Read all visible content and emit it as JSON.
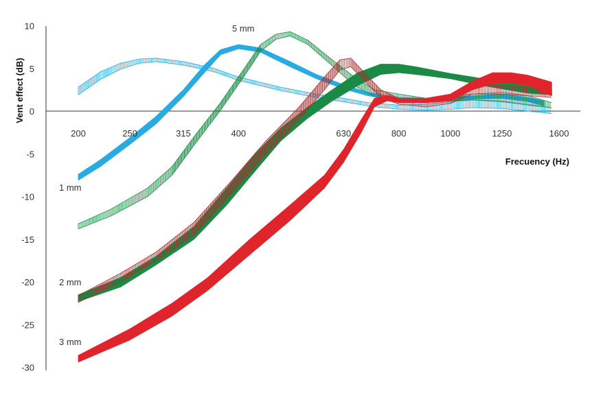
{
  "chart_data": {
    "type": "line",
    "xlabel": "Frecuency (Hz)",
    "ylabel": "Vent effect (dB)",
    "xscale": "log",
    "xlim": [
      200,
      1600
    ],
    "ylim": [
      -30,
      10
    ],
    "x_ticks": [
      200,
      250,
      315,
      400,
      630,
      800,
      1000,
      1250,
      1600
    ],
    "y_ticks": [
      10,
      5,
      0,
      -5,
      -10,
      -15,
      -20,
      -25,
      -30
    ],
    "grid": false,
    "legend": "none",
    "series": [
      {
        "name": "1 mm",
        "color": "#29abe2",
        "style": "solid",
        "upper": [
          [
            200,
            -7.4
          ],
          [
            220,
            -5.7
          ],
          [
            250,
            -3.1
          ],
          [
            280,
            -0.6
          ],
          [
            315,
            2.5
          ],
          [
            345,
            5.4
          ],
          [
            370,
            7.2
          ],
          [
            400,
            7.8
          ],
          [
            440,
            7.4
          ],
          [
            500,
            5.8
          ],
          [
            560,
            4.3
          ],
          [
            630,
            3.1
          ],
          [
            700,
            2.2
          ],
          [
            800,
            1.6
          ],
          [
            900,
            1.5
          ],
          [
            1000,
            1.6
          ],
          [
            1100,
            1.8
          ],
          [
            1250,
            2.0
          ],
          [
            1400,
            1.6
          ],
          [
            1500,
            1.2
          ]
        ],
        "lower": [
          [
            200,
            -8.1
          ],
          [
            220,
            -6.5
          ],
          [
            250,
            -3.9
          ],
          [
            280,
            -1.5
          ],
          [
            315,
            1.7
          ],
          [
            345,
            4.5
          ],
          [
            370,
            6.6
          ],
          [
            400,
            7.3
          ],
          [
            440,
            6.9
          ],
          [
            500,
            5.2
          ],
          [
            560,
            3.8
          ],
          [
            630,
            2.6
          ],
          [
            700,
            1.8
          ],
          [
            800,
            1.2
          ],
          [
            900,
            1.1
          ],
          [
            1000,
            1.2
          ],
          [
            1100,
            1.4
          ],
          [
            1250,
            1.5
          ],
          [
            1400,
            1.1
          ],
          [
            1500,
            0.6
          ]
        ]
      },
      {
        "name": "",
        "color": "#29abe2",
        "style": "hatched",
        "upper": [
          [
            200,
            2.8
          ],
          [
            220,
            4.6
          ],
          [
            240,
            5.6
          ],
          [
            260,
            6.1
          ],
          [
            280,
            6.2
          ],
          [
            315,
            5.8
          ],
          [
            360,
            5.0
          ],
          [
            400,
            4.0
          ],
          [
            480,
            2.8
          ],
          [
            560,
            2.0
          ],
          [
            630,
            1.5
          ],
          [
            700,
            1.0
          ],
          [
            800,
            0.7
          ],
          [
            900,
            0.8
          ],
          [
            1000,
            1.1
          ],
          [
            1100,
            1.3
          ],
          [
            1250,
            1.2
          ],
          [
            1400,
            0.8
          ],
          [
            1550,
            0.4
          ]
        ],
        "lower": [
          [
            200,
            1.9
          ],
          [
            220,
            3.7
          ],
          [
            240,
            4.9
          ],
          [
            260,
            5.6
          ],
          [
            280,
            5.8
          ],
          [
            315,
            5.4
          ],
          [
            360,
            4.6
          ],
          [
            400,
            3.6
          ],
          [
            480,
            2.4
          ],
          [
            560,
            1.6
          ],
          [
            630,
            1.1
          ],
          [
            700,
            0.6
          ],
          [
            800,
            0.2
          ],
          [
            900,
            0.1
          ],
          [
            1000,
            0.2
          ],
          [
            1100,
            0.4
          ],
          [
            1250,
            0.3
          ],
          [
            1400,
            0.0
          ],
          [
            1550,
            -0.3
          ]
        ]
      },
      {
        "name": "5 mm",
        "color": "#1a8a44",
        "style": "hatched",
        "upper": [
          [
            200,
            -13.2
          ],
          [
            230,
            -11.5
          ],
          [
            270,
            -9.0
          ],
          [
            300,
            -6.5
          ],
          [
            330,
            -3.0
          ],
          [
            370,
            1.0
          ],
          [
            410,
            5.0
          ],
          [
            440,
            7.8
          ],
          [
            470,
            9.0
          ],
          [
            500,
            9.3
          ],
          [
            540,
            8.3
          ],
          [
            600,
            6.0
          ],
          [
            660,
            4.0
          ],
          [
            720,
            2.5
          ],
          [
            800,
            2.0
          ],
          [
            900,
            1.5
          ],
          [
            1000,
            1.8
          ],
          [
            1100,
            2.0
          ],
          [
            1250,
            2.2
          ],
          [
            1400,
            1.8
          ],
          [
            1550,
            1.0
          ]
        ],
        "lower": [
          [
            200,
            -13.8
          ],
          [
            230,
            -12.3
          ],
          [
            270,
            -10.0
          ],
          [
            300,
            -7.5
          ],
          [
            330,
            -4.0
          ],
          [
            370,
            0.1
          ],
          [
            410,
            4.1
          ],
          [
            440,
            7.0
          ],
          [
            470,
            8.4
          ],
          [
            500,
            8.8
          ],
          [
            540,
            7.8
          ],
          [
            600,
            5.3
          ],
          [
            660,
            3.0
          ],
          [
            720,
            1.7
          ],
          [
            800,
            1.2
          ],
          [
            900,
            1.0
          ],
          [
            1000,
            1.2
          ],
          [
            1100,
            1.3
          ],
          [
            1250,
            1.1
          ],
          [
            1400,
            0.7
          ],
          [
            1550,
            0.4
          ]
        ]
      },
      {
        "name": "2 mm",
        "color": "#1a8a44",
        "style": "solid",
        "upper": [
          [
            200,
            -21.5
          ],
          [
            240,
            -19.5
          ],
          [
            280,
            -17.0
          ],
          [
            330,
            -13.5
          ],
          [
            380,
            -9.0
          ],
          [
            430,
            -5.0
          ],
          [
            480,
            -2.0
          ],
          [
            540,
            0.5
          ],
          [
            600,
            2.5
          ],
          [
            670,
            4.5
          ],
          [
            740,
            5.5
          ],
          [
            800,
            5.5
          ],
          [
            860,
            5.2
          ],
          [
            1000,
            4.4
          ],
          [
            1150,
            3.8
          ],
          [
            1250,
            3.4
          ],
          [
            1400,
            3.0
          ],
          [
            1550,
            2.6
          ]
        ],
        "lower": [
          [
            200,
            -22.3
          ],
          [
            240,
            -20.6
          ],
          [
            280,
            -18.0
          ],
          [
            330,
            -15.0
          ],
          [
            380,
            -11.0
          ],
          [
            430,
            -7.0
          ],
          [
            480,
            -3.5
          ],
          [
            540,
            -0.8
          ],
          [
            600,
            1.2
          ],
          [
            670,
            3.0
          ],
          [
            740,
            4.3
          ],
          [
            800,
            4.5
          ],
          [
            860,
            4.3
          ],
          [
            1000,
            3.8
          ],
          [
            1150,
            3.0
          ],
          [
            1250,
            2.6
          ],
          [
            1400,
            2.1
          ],
          [
            1550,
            1.9
          ]
        ]
      },
      {
        "name": "",
        "color": "#a83232",
        "style": "hatched",
        "upper": [
          [
            200,
            -21.6
          ],
          [
            240,
            -19.0
          ],
          [
            280,
            -16.5
          ],
          [
            330,
            -13.0
          ],
          [
            390,
            -8.0
          ],
          [
            450,
            -3.5
          ],
          [
            520,
            0.5
          ],
          [
            580,
            4.0
          ],
          [
            620,
            6.0
          ],
          [
            650,
            6.2
          ],
          [
            690,
            4.5
          ],
          [
            740,
            2.5
          ],
          [
            800,
            1.5
          ],
          [
            900,
            1.2
          ],
          [
            1000,
            1.8
          ],
          [
            1100,
            3.0
          ],
          [
            1250,
            3.0
          ],
          [
            1400,
            2.8
          ],
          [
            1550,
            2.4
          ]
        ],
        "lower": [
          [
            200,
            -22.4
          ],
          [
            240,
            -20.0
          ],
          [
            280,
            -17.5
          ],
          [
            330,
            -14.5
          ],
          [
            390,
            -9.5
          ],
          [
            450,
            -5.0
          ],
          [
            520,
            -1.0
          ],
          [
            580,
            2.5
          ],
          [
            620,
            4.8
          ],
          [
            650,
            5.2
          ],
          [
            690,
            3.5
          ],
          [
            740,
            1.6
          ],
          [
            800,
            0.8
          ],
          [
            900,
            0.5
          ],
          [
            1000,
            0.9
          ],
          [
            1100,
            2.0
          ],
          [
            1250,
            2.0
          ],
          [
            1400,
            1.8
          ],
          [
            1550,
            1.6
          ]
        ]
      },
      {
        "name": "3 mm",
        "color": "#e0242b",
        "style": "solid",
        "upper": [
          [
            200,
            -28.6
          ],
          [
            250,
            -25.5
          ],
          [
            300,
            -22.5
          ],
          [
            350,
            -19.5
          ],
          [
            420,
            -15.0
          ],
          [
            500,
            -11.0
          ],
          [
            580,
            -7.5
          ],
          [
            630,
            -4.5
          ],
          [
            680,
            -1.0
          ],
          [
            720,
            1.5
          ],
          [
            760,
            1.8
          ],
          [
            800,
            1.5
          ],
          [
            900,
            1.5
          ],
          [
            1000,
            2.0
          ],
          [
            1100,
            3.5
          ],
          [
            1200,
            4.5
          ],
          [
            1300,
            4.5
          ],
          [
            1400,
            4.2
          ],
          [
            1550,
            3.4
          ]
        ],
        "lower": [
          [
            200,
            -29.4
          ],
          [
            250,
            -26.8
          ],
          [
            300,
            -24.0
          ],
          [
            350,
            -21.0
          ],
          [
            420,
            -16.8
          ],
          [
            500,
            -12.8
          ],
          [
            580,
            -9.0
          ],
          [
            630,
            -6.0
          ],
          [
            680,
            -2.5
          ],
          [
            720,
            0.5
          ],
          [
            760,
            1.2
          ],
          [
            800,
            1.0
          ],
          [
            900,
            1.0
          ],
          [
            1000,
            1.2
          ],
          [
            1100,
            2.5
          ],
          [
            1200,
            3.2
          ],
          [
            1300,
            3.3
          ],
          [
            1400,
            3.0
          ],
          [
            1550,
            1.8
          ]
        ]
      }
    ]
  }
}
